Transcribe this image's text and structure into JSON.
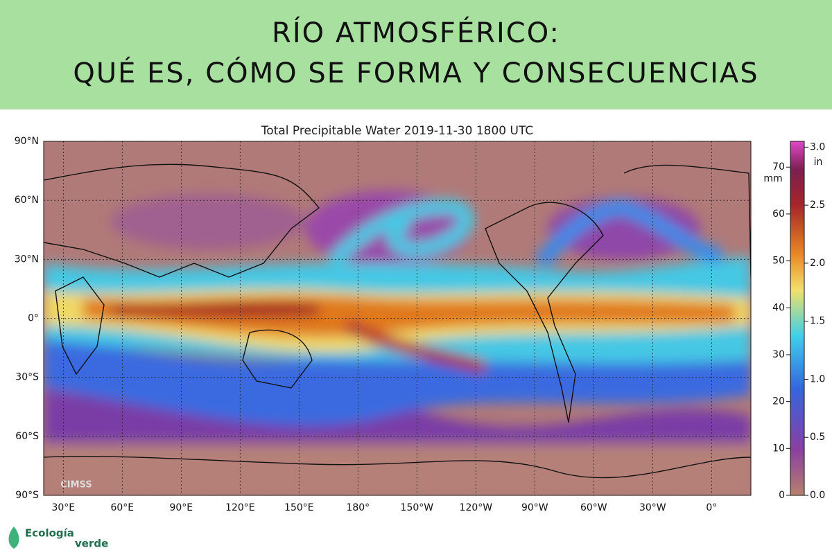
{
  "banner": {
    "line1": "RÍO ATMOSFÉRICO:",
    "line2": "QUÉ ES, CÓMO SE FORMA Y CONSECUENCIAS"
  },
  "map": {
    "title": "Total Precipitable Water  2019-11-30 1800 UTC",
    "lat_lim": [
      -90,
      90
    ],
    "lat_ticks": [
      {
        "value": 90,
        "label": "90°N"
      },
      {
        "value": 60,
        "label": "60°N"
      },
      {
        "value": 30,
        "label": "30°N"
      },
      {
        "value": 0,
        "label": "0°"
      },
      {
        "value": -30,
        "label": "30°S"
      },
      {
        "value": -60,
        "label": "60°S"
      },
      {
        "value": -90,
        "label": "90°S"
      }
    ],
    "lon_lim": [
      20,
      380
    ],
    "lon_ticks": [
      {
        "value": 30,
        "label": "30°E"
      },
      {
        "value": 60,
        "label": "60°E"
      },
      {
        "value": 90,
        "label": "90°E"
      },
      {
        "value": 120,
        "label": "120°E"
      },
      {
        "value": 150,
        "label": "150°E"
      },
      {
        "value": 180,
        "label": "180°"
      },
      {
        "value": 210,
        "label": "150°W"
      },
      {
        "value": 240,
        "label": "120°W"
      },
      {
        "value": 270,
        "label": "90°W"
      },
      {
        "value": 300,
        "label": "60°W"
      },
      {
        "value": 330,
        "label": "30°W"
      },
      {
        "value": 360,
        "label": "0°"
      }
    ],
    "watermark": "CIMSS"
  },
  "colorbar": {
    "mm_label": "mm",
    "in_label": "in",
    "mm_lim": [
      0,
      75.5
    ],
    "mm_ticks": [
      0,
      10,
      20,
      30,
      40,
      50,
      60,
      70
    ],
    "in_lim": [
      0,
      3.05
    ],
    "in_ticks": [
      {
        "value": 0,
        "label": "0.0"
      },
      0.5,
      {
        "value": 1,
        "label": "1.0"
      },
      1.5,
      {
        "value": 2,
        "label": "2.0"
      },
      2.5,
      {
        "value": 3,
        "label": "3.0"
      }
    ]
  },
  "logo": {
    "line1": "Ecología",
    "line2": "verde"
  }
}
